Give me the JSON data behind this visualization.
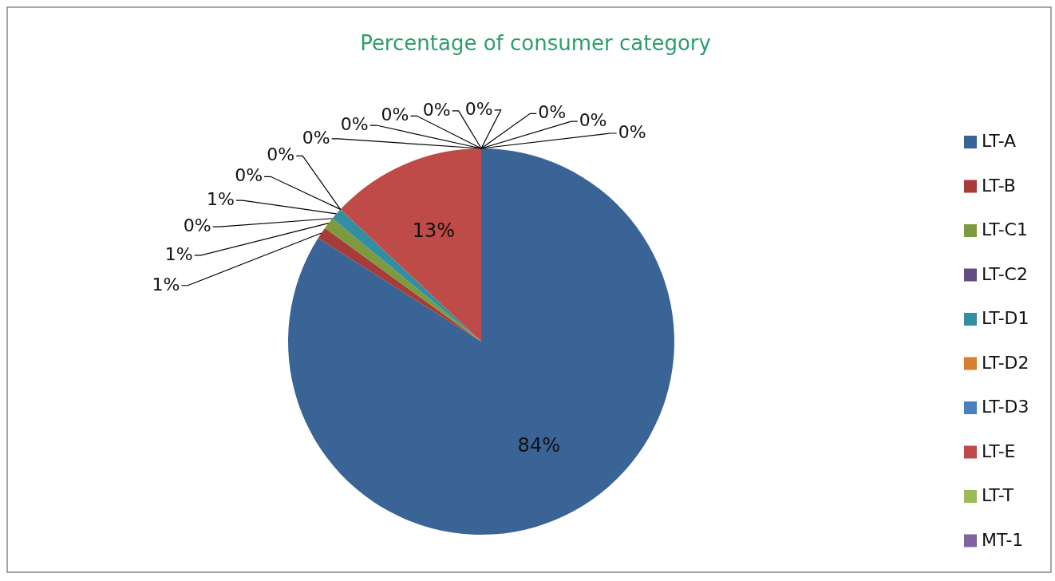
{
  "chart_data": {
    "type": "pie",
    "title": "Percentage of consumer category",
    "categories": [
      "LT-A",
      "LT-B",
      "LT-C1",
      "LT-C2",
      "LT-D1",
      "LT-D2",
      "LT-D3",
      "LT-E",
      "LT-T",
      "MT-1",
      null,
      null,
      null,
      null,
      null,
      null
    ],
    "values": [
      84,
      1,
      1,
      0,
      1,
      0,
      0,
      13,
      0,
      0,
      0,
      0,
      0,
      0,
      0,
      0
    ],
    "value_labels": [
      "84%",
      "1%",
      "1%",
      "0%",
      "1%",
      "0%",
      "0%",
      "13%",
      "0%",
      "0%",
      "0%",
      "0%",
      "0%",
      "0%",
      "0%",
      "0%"
    ],
    "colors": [
      "#3a6496",
      "#a63c3a",
      "#7e9a3e",
      "#634c82",
      "#338ea2",
      "#d57f2f",
      "#4a7fc0",
      "#bf4b48",
      "#9bbb59",
      "#8064a2",
      "#4bacc6",
      "#f79646",
      "#2c4d75",
      "#772c2a",
      "#5f7530",
      "#4d3b62"
    ],
    "legend": "right"
  }
}
